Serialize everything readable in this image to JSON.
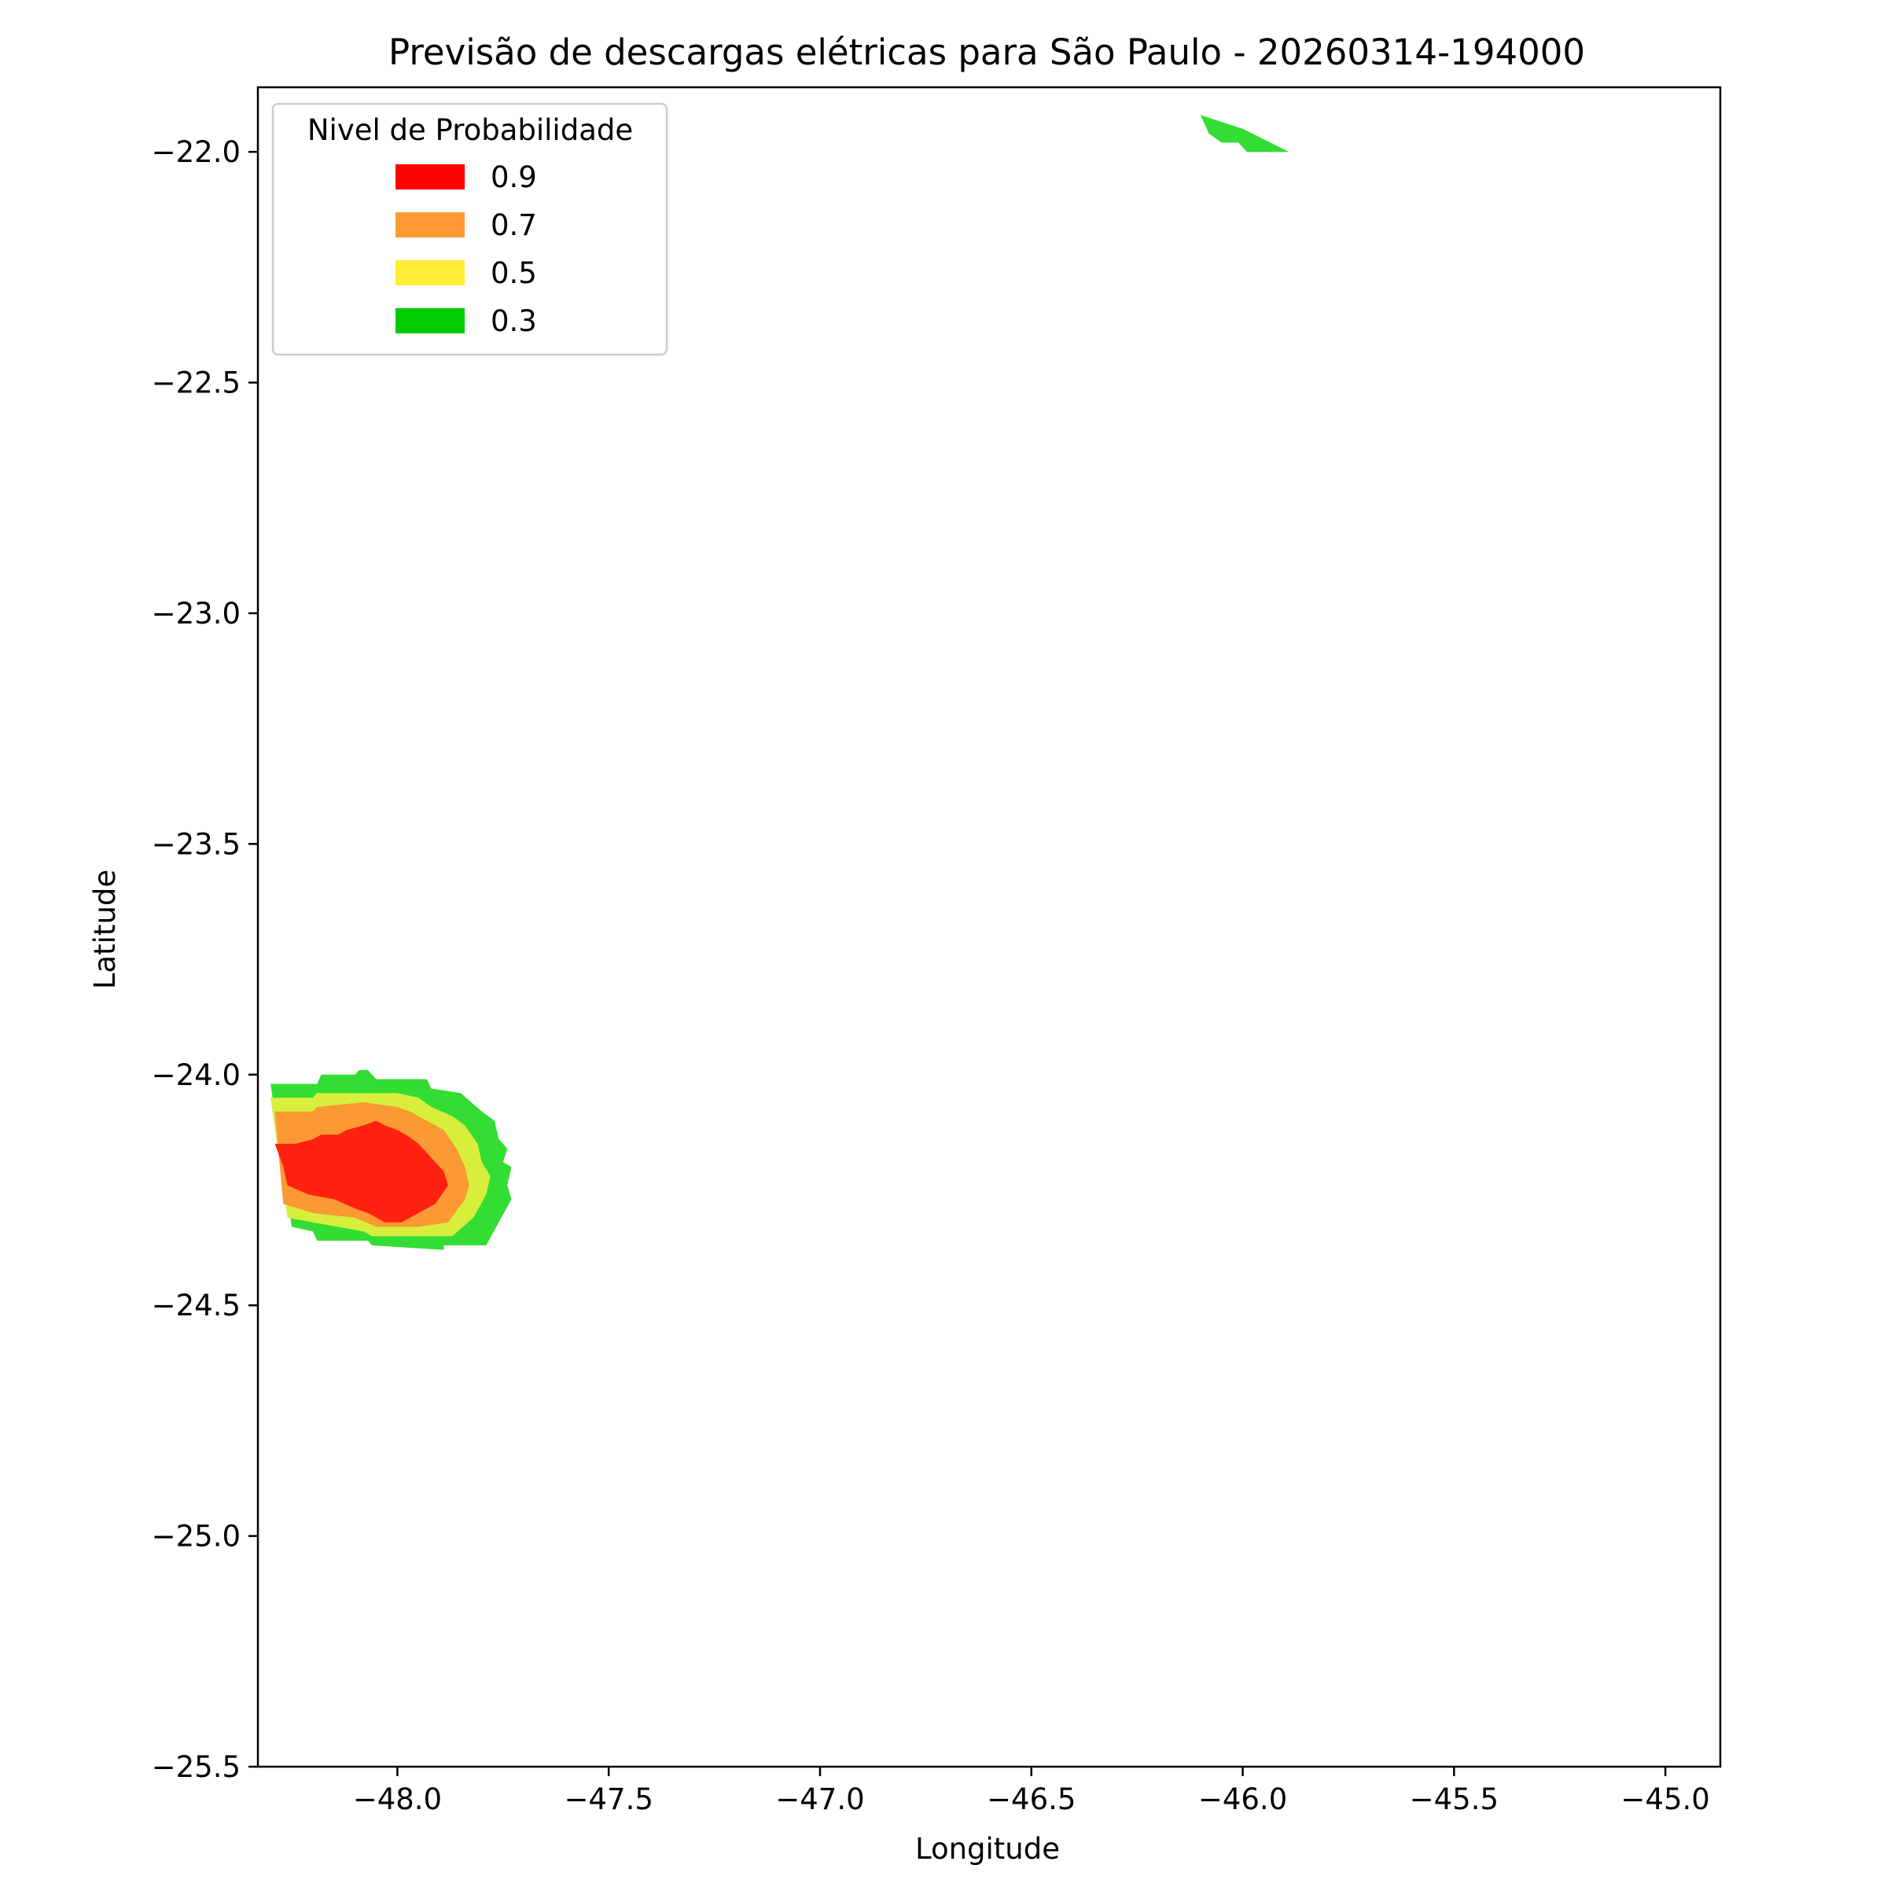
{
  "chart_data": {
    "type": "contour",
    "title": "Previsão de descargas elétricas para São Paulo - 20260314-194000",
    "xlabel": "Longitude",
    "ylabel": "Latitude",
    "xlim": [
      -48.33,
      -44.87
    ],
    "ylim": [
      -25.5,
      -21.86
    ],
    "x_ticks": [
      -48.0,
      -47.5,
      -47.0,
      -46.5,
      -46.0,
      -45.5,
      -45.0
    ],
    "x_tick_labels": [
      "−48.0",
      "−47.5",
      "−47.0",
      "−46.5",
      "−46.0",
      "−45.5",
      "−45.0"
    ],
    "y_ticks": [
      -22.0,
      -22.5,
      -23.0,
      -23.5,
      -24.0,
      -24.5,
      -25.0,
      -25.5
    ],
    "y_tick_labels": [
      "−22.0",
      "−22.5",
      "−23.0",
      "−23.5",
      "−24.0",
      "−24.5",
      "−25.0",
      "−25.5"
    ],
    "grid": false,
    "legend": {
      "title": "Nivel de Probabilidade",
      "placement": "top-left",
      "entries": [
        {
          "label": "0.9",
          "color": "#ff0000"
        },
        {
          "label": "0.7",
          "color": "#ff9933"
        },
        {
          "label": "0.5",
          "color": "#ffee33"
        },
        {
          "label": "0.3",
          "color": "#00cc00"
        }
      ]
    },
    "regions": [
      {
        "level": "0.3",
        "fill": "#33dd33",
        "points": [
          [
            -48.3,
            -24.02
          ],
          [
            -48.19,
            -24.02
          ],
          [
            -48.18,
            -24.0
          ],
          [
            -48.1,
            -24.0
          ],
          [
            -48.09,
            -23.99
          ],
          [
            -48.07,
            -23.99
          ],
          [
            -48.05,
            -24.01
          ],
          [
            -48.0,
            -24.01
          ],
          [
            -47.93,
            -24.01
          ],
          [
            -47.92,
            -24.03
          ],
          [
            -47.85,
            -24.04
          ],
          [
            -47.8,
            -24.08
          ],
          [
            -47.77,
            -24.1
          ],
          [
            -47.76,
            -24.14
          ],
          [
            -47.74,
            -24.16
          ],
          [
            -47.75,
            -24.19
          ],
          [
            -47.73,
            -24.2
          ],
          [
            -47.74,
            -24.24
          ],
          [
            -47.73,
            -24.27
          ],
          [
            -47.79,
            -24.37
          ],
          [
            -47.89,
            -24.37
          ],
          [
            -47.89,
            -24.38
          ],
          [
            -48.06,
            -24.37
          ],
          [
            -48.07,
            -24.36
          ],
          [
            -48.19,
            -24.36
          ],
          [
            -48.2,
            -24.34
          ],
          [
            -48.25,
            -24.33
          ]
        ]
      },
      {
        "level": "0.5",
        "fill": "#d7ee3d",
        "points": [
          [
            -48.3,
            -24.05
          ],
          [
            -48.2,
            -24.05
          ],
          [
            -48.19,
            -24.04
          ],
          [
            -48.08,
            -24.04
          ],
          [
            -48.0,
            -24.04
          ],
          [
            -47.95,
            -24.05
          ],
          [
            -47.92,
            -24.07
          ],
          [
            -47.87,
            -24.09
          ],
          [
            -47.84,
            -24.11
          ],
          [
            -47.81,
            -24.15
          ],
          [
            -47.8,
            -24.19
          ],
          [
            -47.78,
            -24.22
          ],
          [
            -47.79,
            -24.26
          ],
          [
            -47.82,
            -24.31
          ],
          [
            -47.87,
            -24.35
          ],
          [
            -47.93,
            -24.35
          ],
          [
            -48.06,
            -24.35
          ],
          [
            -48.08,
            -24.34
          ],
          [
            -48.2,
            -24.32
          ],
          [
            -48.26,
            -24.31
          ]
        ]
      },
      {
        "level": "0.7",
        "fill": "#fb9933",
        "points": [
          [
            -48.29,
            -24.08
          ],
          [
            -48.2,
            -24.08
          ],
          [
            -48.19,
            -24.07
          ],
          [
            -48.08,
            -24.06
          ],
          [
            -48.0,
            -24.07
          ],
          [
            -47.97,
            -24.08
          ],
          [
            -47.93,
            -24.1
          ],
          [
            -47.89,
            -24.12
          ],
          [
            -47.86,
            -24.16
          ],
          [
            -47.84,
            -24.2
          ],
          [
            -47.83,
            -24.24
          ],
          [
            -47.84,
            -24.27
          ],
          [
            -47.88,
            -24.32
          ],
          [
            -47.95,
            -24.33
          ],
          [
            -48.05,
            -24.33
          ],
          [
            -48.1,
            -24.31
          ],
          [
            -48.2,
            -24.3
          ],
          [
            -48.27,
            -24.28
          ]
        ]
      },
      {
        "level": "0.9",
        "fill": "#ff2211",
        "points": [
          [
            -48.29,
            -24.15
          ],
          [
            -48.24,
            -24.15
          ],
          [
            -48.2,
            -24.14
          ],
          [
            -48.18,
            -24.13
          ],
          [
            -48.14,
            -24.13
          ],
          [
            -48.12,
            -24.12
          ],
          [
            -48.08,
            -24.11
          ],
          [
            -48.05,
            -24.1
          ],
          [
            -48.03,
            -24.11
          ],
          [
            -48.0,
            -24.12
          ],
          [
            -47.98,
            -24.13
          ],
          [
            -47.95,
            -24.15
          ],
          [
            -47.92,
            -24.18
          ],
          [
            -47.89,
            -24.21
          ],
          [
            -47.88,
            -24.24
          ],
          [
            -47.91,
            -24.28
          ],
          [
            -47.95,
            -24.3
          ],
          [
            -47.99,
            -24.32
          ],
          [
            -48.03,
            -24.32
          ],
          [
            -48.07,
            -24.3
          ],
          [
            -48.1,
            -24.29
          ],
          [
            -48.15,
            -24.27
          ],
          [
            -48.21,
            -24.26
          ],
          [
            -48.26,
            -24.24
          ],
          [
            -48.27,
            -24.2
          ]
        ]
      },
      {
        "level": "0.3",
        "fill": "#33dd33",
        "points": [
          [
            -46.1,
            -21.92
          ],
          [
            -46.0,
            -21.95
          ],
          [
            -45.89,
            -22.0
          ],
          [
            -45.99,
            -22.0
          ],
          [
            -46.01,
            -21.98
          ],
          [
            -46.05,
            -21.98
          ],
          [
            -46.08,
            -21.96
          ]
        ]
      }
    ]
  }
}
